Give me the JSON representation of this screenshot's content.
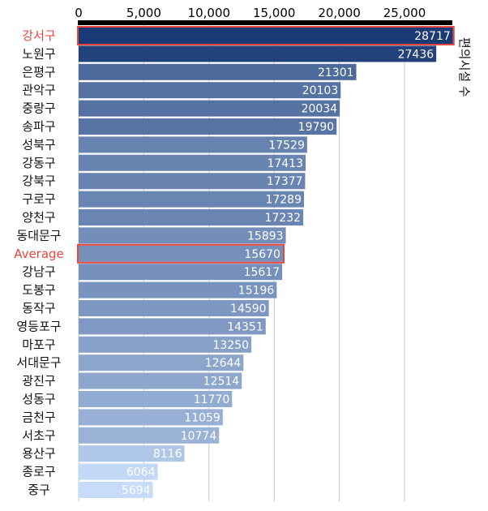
{
  "chart_data": {
    "type": "bar",
    "orientation": "horizontal",
    "title": "",
    "xlabel": "",
    "ylabel": "편의시설 수",
    "xlim": [
      0,
      29000
    ],
    "x_ticks": [
      0,
      5000,
      10000,
      15000,
      20000,
      25000
    ],
    "x_tick_labels": [
      "0",
      "5,000",
      "10,000",
      "15,000",
      "20,000",
      "25,000"
    ],
    "x_axis_position": "top",
    "grid": true,
    "categories": [
      "강서구",
      "노원구",
      "은평구",
      "관악구",
      "중랑구",
      "송파구",
      "성북구",
      "강동구",
      "강북구",
      "구로구",
      "양천구",
      "동대문구",
      "Average",
      "강남구",
      "도봉구",
      "동작구",
      "영등포구",
      "마포구",
      "서대문구",
      "광진구",
      "성동구",
      "금천구",
      "서초구",
      "용산구",
      "종로구",
      "중구"
    ],
    "values": [
      28717,
      27436,
      21301,
      20103,
      20034,
      19790,
      17529,
      17413,
      17377,
      17289,
      17232,
      15893,
      15670,
      15617,
      15196,
      14590,
      14351,
      13250,
      12644,
      12514,
      11770,
      11059,
      10774,
      8116,
      6064,
      5694
    ],
    "value_labels": [
      "28717",
      "27436",
      "21301",
      "20103",
      "20034",
      "19790",
      "17529",
      "17413",
      "17377",
      "17289",
      "17232",
      "15893",
      "15670",
      "15617",
      "15196",
      "14590",
      "14351",
      "13250",
      "12644",
      "12514",
      "11770",
      "11059",
      "10774",
      "8116",
      "6064",
      "5694"
    ],
    "highlighted": [
      "강서구",
      "Average"
    ],
    "highlight_color": "#e8453c",
    "color_scale": [
      "#c6dcf8",
      "#1a3a75"
    ]
  }
}
